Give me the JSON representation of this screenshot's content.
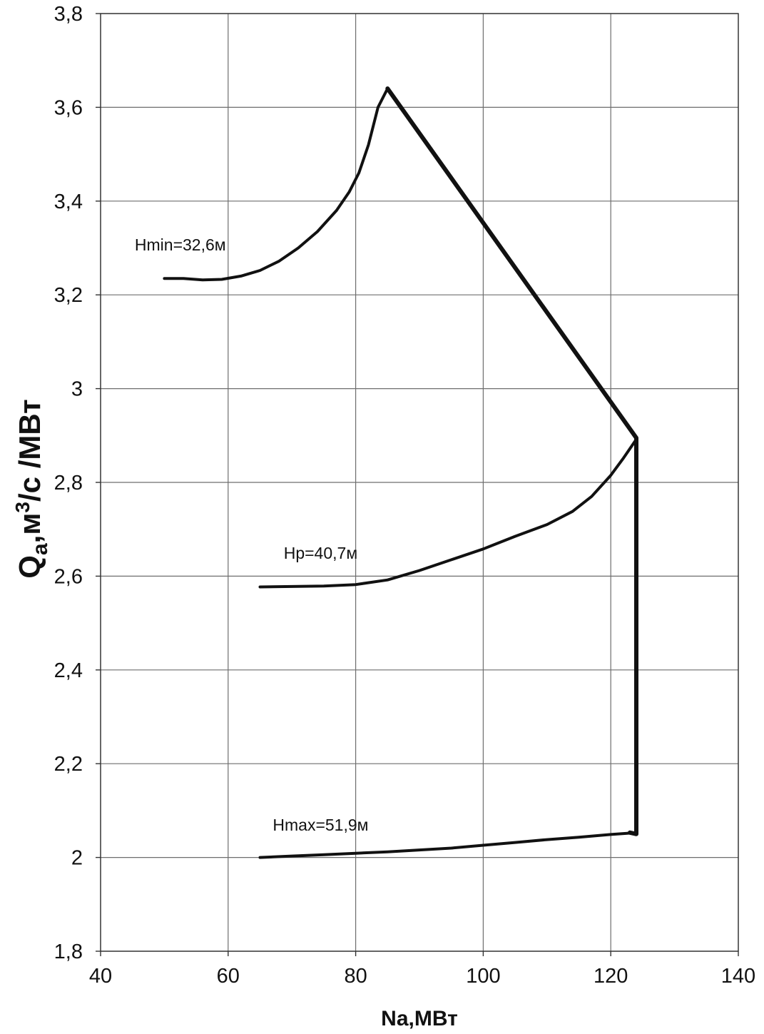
{
  "chart_data": {
    "type": "line",
    "xlabel": "Na,МВт",
    "ylabel_main": "Q",
    "ylabel_sub": "a",
    "ylabel_mid": ",м",
    "ylabel_sup": "3",
    "ylabel_tail": "/с /МВт",
    "xlim": [
      40,
      140
    ],
    "ylim": [
      1.8,
      3.8
    ],
    "x_ticks": [
      {
        "value": 40,
        "label": "40"
      },
      {
        "value": 60,
        "label": "60"
      },
      {
        "value": 80,
        "label": "80"
      },
      {
        "value": 100,
        "label": "100"
      },
      {
        "value": 120,
        "label": "120"
      },
      {
        "value": 140,
        "label": "140"
      }
    ],
    "y_ticks": [
      {
        "value": 1.8,
        "label": "1,8"
      },
      {
        "value": 2.0,
        "label": "2"
      },
      {
        "value": 2.2,
        "label": "2,2"
      },
      {
        "value": 2.4,
        "label": "2,4"
      },
      {
        "value": 2.6,
        "label": "2,6"
      },
      {
        "value": 2.8,
        "label": "2,8"
      },
      {
        "value": 3.0,
        "label": "3"
      },
      {
        "value": 3.2,
        "label": "3,2"
      },
      {
        "value": 3.4,
        "label": "3,4"
      },
      {
        "value": 3.6,
        "label": "3,6"
      },
      {
        "value": 3.8,
        "label": "3,8"
      }
    ],
    "grid": true,
    "series": [
      {
        "name": "Hmin=32,6м",
        "x": [
          50,
          53,
          56,
          59,
          62,
          65,
          68,
          71,
          74,
          77,
          79,
          80.5,
          82,
          83.5,
          85
        ],
        "y": [
          3.235,
          3.235,
          3.232,
          3.233,
          3.24,
          3.252,
          3.272,
          3.3,
          3.335,
          3.38,
          3.42,
          3.46,
          3.52,
          3.6,
          3.64
        ],
        "label_at": [
          52.5,
          3.295
        ]
      },
      {
        "name": "Hp=40,7м",
        "x": [
          65,
          70,
          75,
          80,
          85,
          90,
          95,
          100,
          105,
          110,
          114,
          117,
          120,
          122,
          124
        ],
        "y": [
          2.577,
          2.578,
          2.579,
          2.582,
          2.592,
          2.612,
          2.635,
          2.658,
          2.685,
          2.71,
          2.738,
          2.77,
          2.815,
          2.852,
          2.892
        ],
        "label_at": [
          74.5,
          2.637
        ]
      },
      {
        "name": "Hmax=51,9м",
        "x": [
          65,
          70,
          75,
          80,
          85,
          90,
          95,
          100,
          105,
          110,
          115,
          120,
          124
        ],
        "y": [
          2.0,
          2.003,
          2.006,
          2.009,
          2.012,
          2.016,
          2.02,
          2.026,
          2.032,
          2.038,
          2.043,
          2.049,
          2.053
        ],
        "label_at": [
          74.5,
          2.057
        ]
      },
      {
        "name": "",
        "role": "boundary",
        "x": [
          85,
          124,
          124,
          123
        ],
        "y": [
          3.64,
          2.895,
          2.05,
          2.053
        ]
      }
    ]
  }
}
